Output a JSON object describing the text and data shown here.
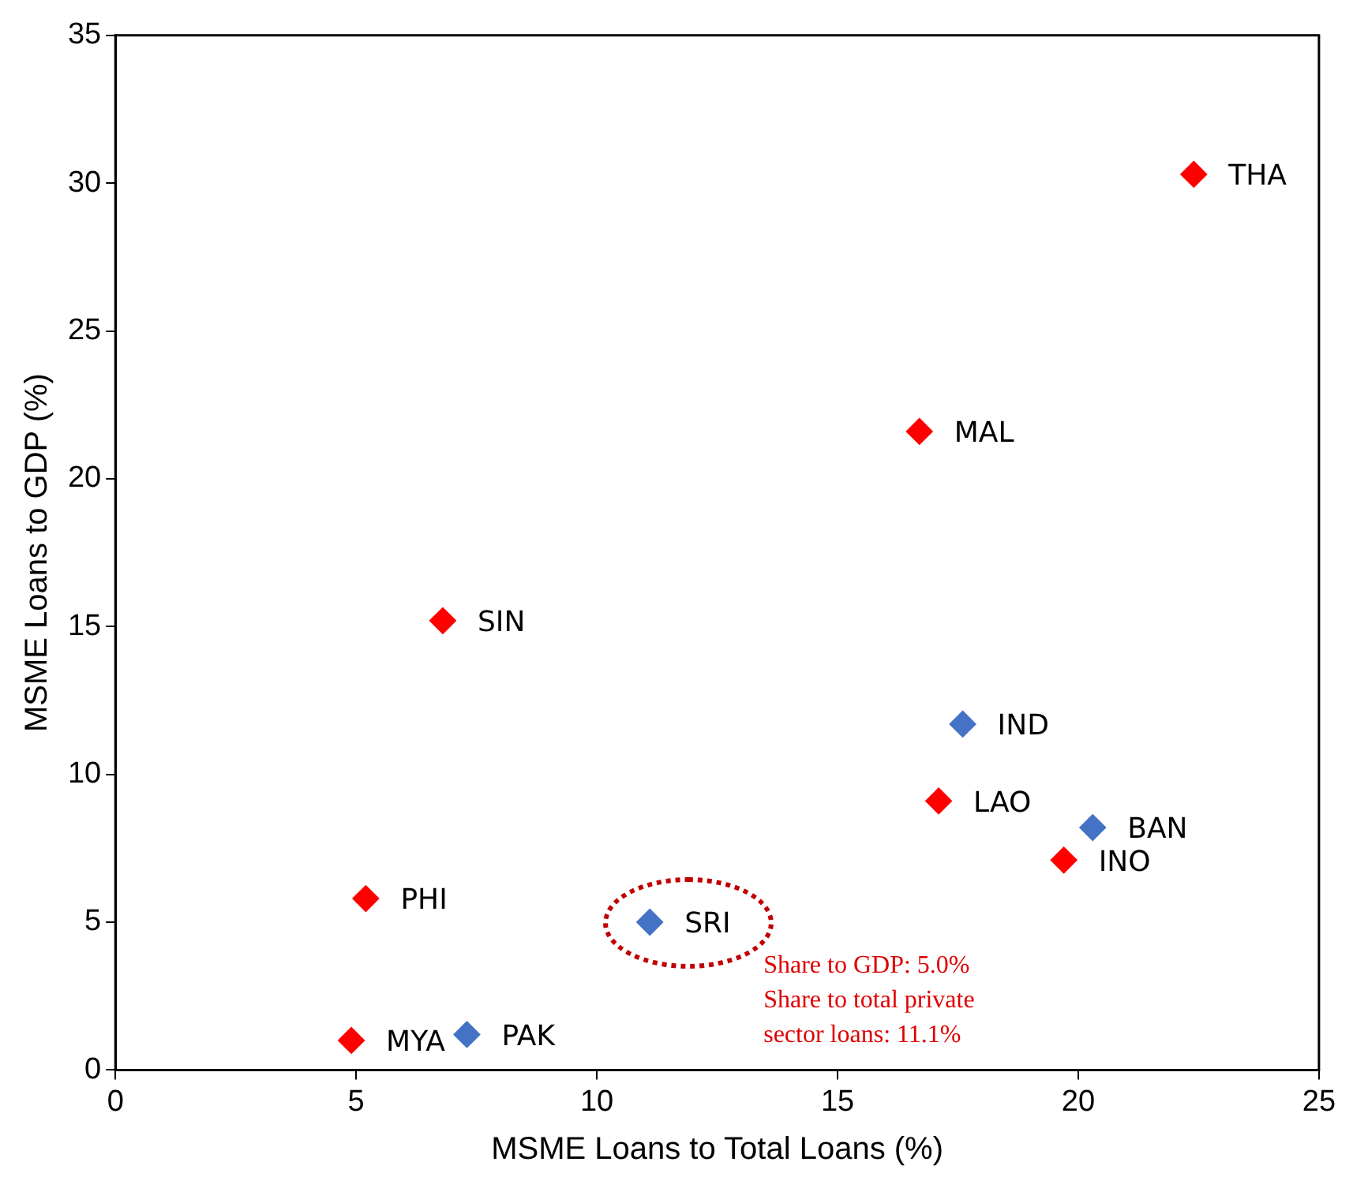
{
  "chart_data": {
    "type": "scatter",
    "xlabel": "MSME Loans to Total Loans (%)",
    "ylabel": "MSME Loans to GDP (%)",
    "xlim": [
      0,
      25
    ],
    "xticks": [
      0,
      5,
      10,
      15,
      20,
      25
    ],
    "ylim": [
      0,
      35
    ],
    "yticks": [
      0,
      5,
      10,
      15,
      20,
      25,
      30,
      35
    ],
    "grid": false,
    "legend": false,
    "marker": "diamond",
    "series": [
      {
        "color": "#ff0000",
        "x": [
          22.4,
          16.7,
          6.8,
          17.1,
          19.7,
          5.2,
          4.9
        ],
        "values": [
          30.3,
          21.6,
          15.2,
          9.1,
          7.1,
          5.8,
          1.0
        ]
      },
      {
        "color": "#4472c4",
        "x": [
          17.6,
          20.3,
          11.1,
          7.3
        ],
        "values": [
          11.7,
          8.2,
          5.0,
          1.2
        ]
      }
    ],
    "annotations": [
      {
        "text": "THA",
        "x": 22.4,
        "y": 30.3
      },
      {
        "text": "MAL",
        "x": 16.7,
        "y": 21.6
      },
      {
        "text": "SIN",
        "x": 6.8,
        "y": 15.2
      },
      {
        "text": "IND",
        "x": 17.6,
        "y": 11.7
      },
      {
        "text": "LAO",
        "x": 17.1,
        "y": 9.1
      },
      {
        "text": "BAN",
        "x": 20.3,
        "y": 8.2
      },
      {
        "text": "INO",
        "x": 19.7,
        "y": 7.1
      },
      {
        "text": "PHI",
        "x": 5.2,
        "y": 5.8
      },
      {
        "text": "PAK",
        "x": 7.3,
        "y": 1.2
      },
      {
        "text": "MYA",
        "x": 4.9,
        "y": 1.0
      },
      {
        "text": "SRI",
        "x": 11.1,
        "y": 5.0
      },
      "Share to GDP: 5.0%\nShare to total private\nsector loans: 11.1%"
    ]
  }
}
